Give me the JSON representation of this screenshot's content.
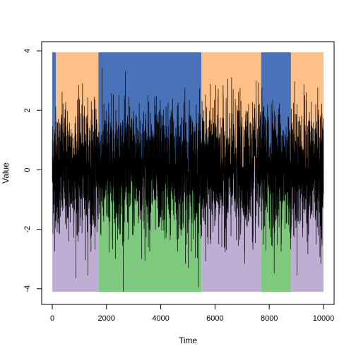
{
  "chart_data": {
    "type": "line",
    "title": "",
    "xlabel": "Time",
    "ylabel": "Value",
    "xlim": [
      0,
      10000
    ],
    "ylim": [
      -4.1,
      4.0
    ],
    "xticks": [
      0,
      2000,
      4000,
      6000,
      8000,
      10000
    ],
    "xtick_labels": [
      "0",
      "2000",
      "4000",
      "6000",
      "8000",
      "10000"
    ],
    "yticks": [
      -4,
      -2,
      0,
      2,
      4
    ],
    "ytick_labels": [
      "-4",
      "-2",
      "0",
      "2",
      "4"
    ],
    "grid": false,
    "series": [
      {
        "n_points": 10000,
        "x_range": [
          1,
          10000
        ],
        "y_min": -4.1,
        "y_max": 3.85,
        "typical_band": [
          -1.5,
          1.5
        ],
        "color": "#000000"
      }
    ],
    "regime_segments": [
      {
        "start": 1,
        "end": 130,
        "top_color": "#4A72B8",
        "bottom_color": "#BEAED4"
      },
      {
        "start": 130,
        "end": 1700,
        "top_color": "#FDC086",
        "bottom_color": "#BEAED4"
      },
      {
        "start": 1700,
        "end": 5500,
        "top_color": "#4A72B8",
        "bottom_color": "#7FC97F"
      },
      {
        "start": 5500,
        "end": 7700,
        "top_color": "#FDC086",
        "bottom_color": "#BEAED4"
      },
      {
        "start": 7700,
        "end": 8800,
        "top_color": "#4A72B8",
        "bottom_color": "#7FC97F"
      },
      {
        "start": 8800,
        "end": 10000,
        "top_color": "#FDC086",
        "bottom_color": "#BEAED4"
      }
    ],
    "band_y_range": {
      "top": [
        0,
        3.95
      ],
      "bottom": [
        -4.1,
        0
      ]
    },
    "colors": {
      "blue": "#4A72B8",
      "orange": "#FDC086",
      "green": "#7FC97F",
      "purple": "#BEAED4",
      "line": "#000000"
    }
  }
}
